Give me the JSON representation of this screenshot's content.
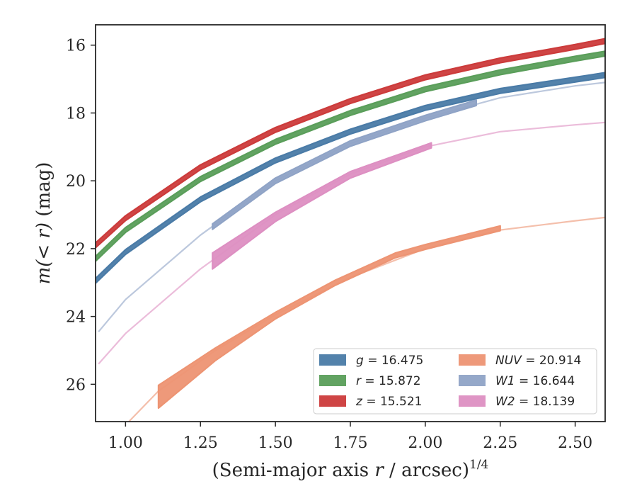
{
  "chart_data": {
    "type": "line",
    "title": "",
    "xlabel_main": "(Semi-major axis ",
    "xlabel_var": "r",
    "xlabel_rest": " / arcsec)",
    "xlabel_sup": "1/4",
    "ylabel_main": "m",
    "ylabel_var": "(< r)",
    "ylabel_rest": " (mag)",
    "xlim": [
      0.9,
      2.6
    ],
    "ylim": [
      27.1,
      15.4
    ],
    "y_inverted": true,
    "xticks": [
      1.0,
      1.25,
      1.5,
      1.75,
      2.0,
      2.25,
      2.5
    ],
    "xtick_labels": [
      "1.00",
      "1.25",
      "1.50",
      "1.75",
      "2.00",
      "2.25",
      "2.50"
    ],
    "yticks": [
      16,
      18,
      20,
      22,
      24,
      26
    ],
    "ytick_labels": [
      "16",
      "18",
      "20",
      "22",
      "24",
      "26"
    ],
    "grid": false,
    "legend_position": "lower-right",
    "legend_columns": 2,
    "series": [
      {
        "name": "g",
        "value": "16.475",
        "color": "#4a7ba7",
        "x": [
          0.9,
          1.0,
          1.25,
          1.5,
          1.75,
          2.0,
          2.25,
          2.55,
          2.6
        ],
        "y": [
          22.95,
          22.1,
          20.55,
          19.4,
          18.55,
          17.85,
          17.35,
          16.95,
          16.88
        ],
        "band": 0.07,
        "model_x": [
          2.55,
          2.6
        ],
        "model_y": [
          16.95,
          16.88
        ]
      },
      {
        "name": "r",
        "value": "15.872",
        "color": "#5a9e5a",
        "x": [
          0.9,
          1.0,
          1.25,
          1.5,
          1.75,
          2.0,
          2.25,
          2.5,
          2.6
        ],
        "y": [
          22.3,
          21.45,
          19.95,
          18.85,
          18.0,
          17.3,
          16.8,
          16.4,
          16.25
        ],
        "band": 0.07
      },
      {
        "name": "z",
        "value": "15.521",
        "color": "#cc3b3b",
        "x": [
          0.9,
          1.0,
          1.25,
          1.5,
          1.75,
          2.0,
          2.25,
          2.5,
          2.6
        ],
        "y": [
          21.9,
          21.1,
          19.6,
          18.5,
          17.65,
          16.95,
          16.45,
          16.05,
          15.88
        ],
        "band": 0.07
      },
      {
        "name": "NUV",
        "value": "20.914",
        "color": "#ed9473",
        "x": [
          1.11,
          1.3,
          1.5,
          1.7,
          1.9,
          2.0,
          2.25
        ],
        "y": [
          26.1,
          25.0,
          23.95,
          23.0,
          22.2,
          21.95,
          21.4
        ],
        "band_lo": [
          0.6,
          0.3,
          0.12,
          0.08,
          0.07,
          0.07,
          0.07
        ],
        "model_x": [
          0.9,
          1.0,
          1.11,
          1.3,
          1.5,
          1.75,
          2.0,
          2.25,
          2.5,
          2.6
        ],
        "model_y": [
          28.2,
          27.2,
          26.2,
          25.0,
          23.95,
          22.85,
          22.0,
          21.45,
          21.18,
          21.08
        ]
      },
      {
        "name": "W1",
        "value": "16.644",
        "color": "#8fa3c6",
        "x": [
          1.29,
          1.5,
          1.75,
          2.0,
          2.17
        ],
        "y": [
          21.35,
          20.0,
          18.9,
          18.15,
          17.7
        ],
        "band": 0.08,
        "model_x": [
          0.91,
          1.0,
          1.25,
          1.5,
          1.75,
          2.0,
          2.25,
          2.5,
          2.6
        ],
        "model_y": [
          24.45,
          23.5,
          21.6,
          20.0,
          18.9,
          18.15,
          17.55,
          17.2,
          17.1
        ]
      },
      {
        "name": "W2",
        "value": "18.139",
        "color": "#dd8fc2",
        "x": [
          1.29,
          1.5,
          1.75,
          2.02
        ],
        "y": [
          22.2,
          21.0,
          19.8,
          18.95
        ],
        "band_lo": [
          0.4,
          0.2,
          0.12,
          0.08
        ],
        "model_x": [
          0.91,
          1.0,
          1.25,
          1.5,
          1.75,
          2.0,
          2.25,
          2.5,
          2.6
        ],
        "model_y": [
          25.4,
          24.5,
          22.6,
          21.0,
          19.8,
          19.0,
          18.55,
          18.35,
          18.28
        ]
      }
    ]
  }
}
